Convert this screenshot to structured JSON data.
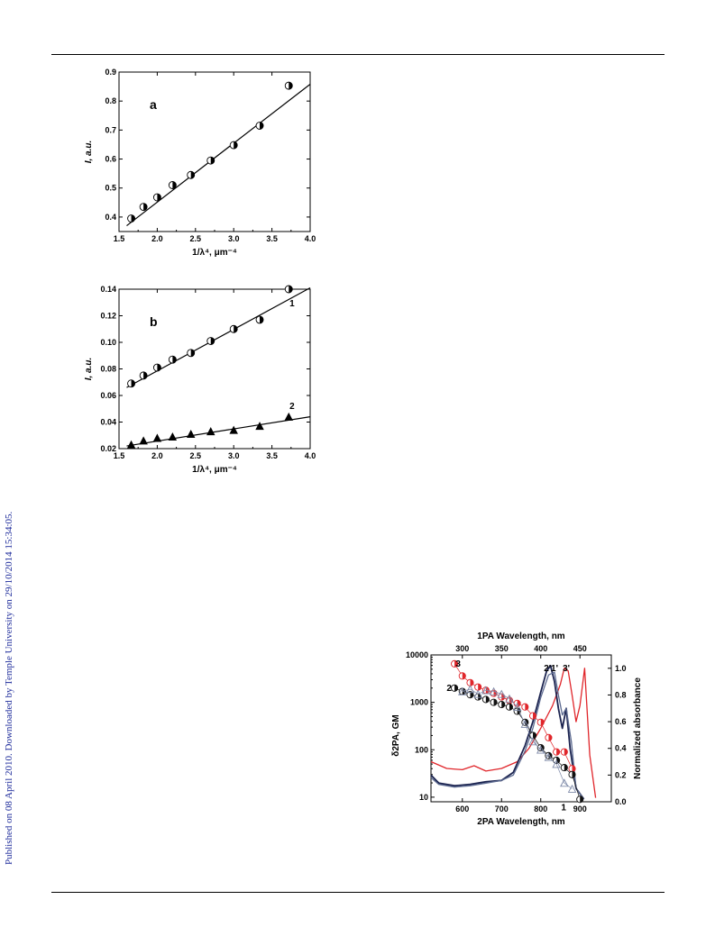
{
  "page": {
    "side_note": "Published on 08 April 2010. Downloaded by Temple University on 29/10/2014 15:34:05."
  },
  "chart_data": [
    {
      "type": "scatter",
      "panel_label": "a",
      "xlabel": "1/λ⁴, μm⁻⁴",
      "ylabel": "I, a.u.",
      "xlim": [
        1.5,
        4.0
      ],
      "ylim": [
        0.35,
        0.9
      ],
      "xticks": [
        "1.5",
        "2.0",
        "2.5",
        "3.0",
        "3.5",
        "4.0"
      ],
      "yticks": [
        "0.4",
        "0.5",
        "0.6",
        "0.7",
        "0.8",
        "0.9"
      ],
      "series": [
        {
          "x": [
            1.66,
            1.82,
            2.0,
            2.2,
            2.44,
            2.7,
            3.0,
            3.34,
            3.72
          ],
          "y": [
            0.395,
            0.435,
            0.468,
            0.51,
            0.545,
            0.595,
            0.648,
            0.715,
            0.853
          ],
          "fit": [
            [
              1.6,
              0.37
            ],
            [
              4.0,
              0.858
            ]
          ]
        }
      ]
    },
    {
      "type": "scatter",
      "panel_label": "b",
      "xlabel": "1/λ⁴, μm⁻⁴",
      "ylabel": "I, a.u.",
      "xlim": [
        1.5,
        4.0
      ],
      "ylim": [
        0.02,
        0.14
      ],
      "xticks": [
        "1.5",
        "2.0",
        "2.5",
        "3.0",
        "3.5",
        "4.0"
      ],
      "yticks": [
        "0.02",
        "0.04",
        "0.06",
        "0.08",
        "0.10",
        "0.12",
        "0.14"
      ],
      "series": [
        {
          "name": "1",
          "x": [
            1.66,
            1.82,
            2.0,
            2.2,
            2.44,
            2.7,
            3.0,
            3.34,
            3.72
          ],
          "y": [
            0.069,
            0.075,
            0.081,
            0.087,
            0.092,
            0.101,
            0.11,
            0.117,
            0.14
          ],
          "fit": [
            [
              1.6,
              0.066
            ],
            [
              4.0,
              0.141
            ]
          ]
        },
        {
          "name": "2",
          "x": [
            1.66,
            1.82,
            2.0,
            2.2,
            2.44,
            2.7,
            3.0,
            3.34,
            3.72
          ],
          "y": [
            0.023,
            0.026,
            0.028,
            0.029,
            0.031,
            0.033,
            0.034,
            0.037,
            0.044
          ],
          "fit": [
            [
              1.6,
              0.022
            ],
            [
              4.0,
              0.044
            ]
          ]
        }
      ]
    },
    {
      "type": "line",
      "xlabel": "2PA Wavelength, nm",
      "top_xlabel": "1PA Wavelength, nm",
      "ylabel": "δ2PA, GM",
      "y2label": "Normalized absorbance",
      "xlim": [
        520,
        980
      ],
      "ylim": [
        8,
        10000
      ],
      "yscale": "log",
      "y2lim": [
        0,
        1.1
      ],
      "xticks": [
        "600",
        "700",
        "800",
        "900"
      ],
      "top_xticks": [
        "300",
        "350",
        "400",
        "450"
      ],
      "yticks": [
        "10",
        "100",
        "1000",
        "10000"
      ],
      "y2ticks": [
        "0.0",
        "0.2",
        "0.4",
        "0.6",
        "0.8",
        "1.0"
      ],
      "colors": {
        "red": "#e0262b",
        "black": "#111111",
        "navy": "#1c2450",
        "slate": "#5c6a90"
      },
      "scatter_series": [
        {
          "name": "3",
          "color": "#e0262b",
          "x": [
            580,
            600,
            620,
            640,
            660,
            680,
            700,
            720,
            740,
            760,
            780,
            800,
            820,
            840,
            860,
            880
          ],
          "y": [
            6500,
            3600,
            2600,
            2100,
            1800,
            1550,
            1300,
            1100,
            950,
            800,
            520,
            380,
            180,
            90,
            90,
            40
          ]
        },
        {
          "name": "2",
          "color": "#111111",
          "x": [
            580,
            600,
            620,
            640,
            660,
            680,
            700,
            720,
            740,
            760,
            780,
            800,
            820,
            840,
            860,
            880,
            900
          ],
          "y": [
            2000,
            1700,
            1450,
            1300,
            1150,
            1000,
            900,
            800,
            650,
            380,
            200,
            110,
            75,
            60,
            42,
            30,
            9
          ]
        },
        {
          "name": "1",
          "color": "#7d89a8",
          "x": [
            600,
            620,
            640,
            660,
            680,
            700,
            720,
            740,
            760,
            780,
            800,
            820,
            840,
            860,
            880
          ],
          "y": [
            1700,
            1900,
            1500,
            1800,
            1700,
            1500,
            1200,
            800,
            350,
            150,
            100,
            70,
            50,
            20,
            15
          ]
        }
      ],
      "line_series": [
        {
          "name": "3'",
          "color": "#e0262b",
          "x": [
            520,
            560,
            600,
            630,
            660,
            700,
            740,
            770,
            800,
            830,
            850,
            860,
            870,
            880,
            890,
            900,
            912,
            925,
            940
          ],
          "y": [
            0.3,
            0.25,
            0.24,
            0.27,
            0.23,
            0.25,
            0.3,
            0.4,
            0.55,
            0.72,
            0.88,
            1.0,
            0.98,
            0.8,
            0.6,
            0.72,
            1.0,
            0.35,
            0.03
          ]
        },
        {
          "name": "2'",
          "color": "#1c2450",
          "x": [
            520,
            540,
            580,
            620,
            660,
            700,
            730,
            760,
            780,
            800,
            815,
            825,
            835,
            845,
            855,
            865,
            875,
            890,
            910
          ],
          "y": [
            0.2,
            0.14,
            0.12,
            0.13,
            0.15,
            0.16,
            0.22,
            0.42,
            0.6,
            0.82,
            0.98,
            1.02,
            0.9,
            0.7,
            0.55,
            0.7,
            0.4,
            0.1,
            0.02
          ]
        },
        {
          "name": "1'",
          "color": "#5c6a90",
          "x": [
            520,
            540,
            580,
            620,
            660,
            700,
            730,
            760,
            780,
            800,
            820,
            835,
            845,
            855,
            865,
            878,
            890,
            910
          ],
          "y": [
            0.18,
            0.13,
            0.11,
            0.12,
            0.14,
            0.16,
            0.2,
            0.38,
            0.55,
            0.78,
            0.95,
            0.97,
            0.8,
            0.65,
            0.7,
            0.45,
            0.1,
            0.02
          ]
        }
      ],
      "labels": [
        "3",
        "2",
        "1",
        "2'",
        "1'",
        "3'"
      ]
    }
  ]
}
